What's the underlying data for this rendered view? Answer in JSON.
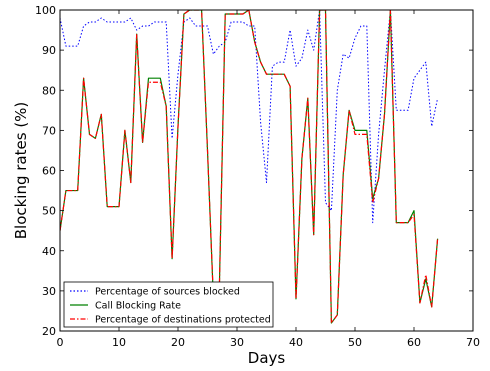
{
  "chart_data": {
    "type": "line",
    "xlabel": "Days",
    "ylabel": "Blocking rates (%)",
    "xlim": [
      0,
      70
    ],
    "ylim": [
      20,
      100
    ],
    "xticks": [
      0,
      10,
      20,
      30,
      40,
      50,
      60,
      70
    ],
    "yticks": [
      20,
      30,
      40,
      50,
      60,
      70,
      80,
      90,
      100
    ],
    "grid": false,
    "legend_position": "bottom-left",
    "series": [
      {
        "name": "Percentage of sources blocked",
        "style": "dotted",
        "color": "#0000ff",
        "x": [
          0,
          1,
          2,
          3,
          4,
          5,
          6,
          7,
          8,
          9,
          10,
          11,
          12,
          13,
          14,
          15,
          16,
          17,
          18,
          19,
          20,
          21,
          22,
          23,
          24,
          25,
          26,
          27,
          28,
          29,
          30,
          31,
          32,
          33,
          34,
          35,
          36,
          37,
          38,
          39,
          40,
          41,
          42,
          43,
          44,
          45,
          46,
          47,
          48,
          49,
          50,
          51,
          52,
          53,
          54,
          55,
          56,
          57,
          58,
          59,
          60,
          61,
          62,
          63,
          64
        ],
        "y": [
          98,
          91,
          91,
          91,
          96,
          97,
          97,
          98,
          97,
          97,
          97,
          97,
          98,
          95,
          96,
          96,
          97,
          97,
          97,
          68,
          84,
          97,
          98,
          96,
          96,
          96,
          89,
          91,
          92,
          97,
          97,
          97,
          96,
          96,
          72,
          57,
          86,
          87,
          87,
          95,
          86,
          88,
          95,
          90,
          100,
          52,
          50,
          80,
          89,
          88,
          93,
          96,
          96,
          47,
          69,
          85,
          100,
          75,
          75,
          75,
          83,
          85,
          87,
          71,
          78
        ]
      },
      {
        "name": "Call Blocking Rate",
        "style": "solid",
        "color": "#008000",
        "x": [
          0,
          1,
          2,
          3,
          4,
          5,
          6,
          7,
          8,
          9,
          10,
          11,
          12,
          13,
          14,
          15,
          16,
          17,
          18,
          19,
          20,
          21,
          22,
          23,
          24,
          25,
          26,
          27,
          28,
          29,
          30,
          31,
          32,
          33,
          34,
          35,
          36,
          37,
          38,
          39,
          40,
          41,
          42,
          43,
          44,
          45,
          46,
          47,
          48,
          49,
          50,
          51,
          52,
          53,
          54,
          55,
          56,
          57,
          58,
          59,
          60,
          61,
          62,
          63,
          64
        ],
        "y": [
          45,
          55,
          55,
          55,
          83,
          69,
          68,
          74,
          51,
          51,
          51,
          70,
          57,
          94,
          67,
          83,
          83,
          83,
          76,
          38,
          71,
          99,
          100,
          100,
          100,
          65,
          28,
          30,
          99,
          99,
          99,
          99,
          100,
          92,
          87,
          84,
          84,
          84,
          84,
          81,
          28,
          63,
          78,
          44,
          100,
          100,
          22,
          24,
          59,
          75,
          70,
          70,
          70,
          53,
          58,
          74,
          100,
          47,
          47,
          47,
          50,
          27,
          33,
          26,
          43
        ]
      },
      {
        "name": "Percentage of destinations protected",
        "style": "dashdot",
        "color": "#ff0000",
        "x": [
          0,
          1,
          2,
          3,
          4,
          5,
          6,
          7,
          8,
          9,
          10,
          11,
          12,
          13,
          14,
          15,
          16,
          17,
          18,
          19,
          20,
          21,
          22,
          23,
          24,
          25,
          26,
          27,
          28,
          29,
          30,
          31,
          32,
          33,
          34,
          35,
          36,
          37,
          38,
          39,
          40,
          41,
          42,
          43,
          44,
          45,
          46,
          47,
          48,
          49,
          50,
          51,
          52,
          53,
          54,
          55,
          56,
          57,
          58,
          59,
          60,
          61,
          62,
          63,
          64
        ],
        "y": [
          45,
          55,
          55,
          55,
          83,
          69,
          68,
          74,
          51,
          51,
          51,
          70,
          57,
          94,
          67,
          82,
          82,
          82,
          76,
          38,
          71,
          99,
          100,
          100,
          100,
          65,
          28,
          30,
          99,
          99,
          99,
          99,
          100,
          92,
          87,
          84,
          84,
          84,
          84,
          81,
          28,
          63,
          78,
          44,
          100,
          100,
          22,
          24,
          59,
          75,
          69,
          69,
          69,
          52,
          58,
          74,
          100,
          47,
          47,
          47,
          49,
          27,
          34,
          26,
          43
        ]
      }
    ]
  }
}
